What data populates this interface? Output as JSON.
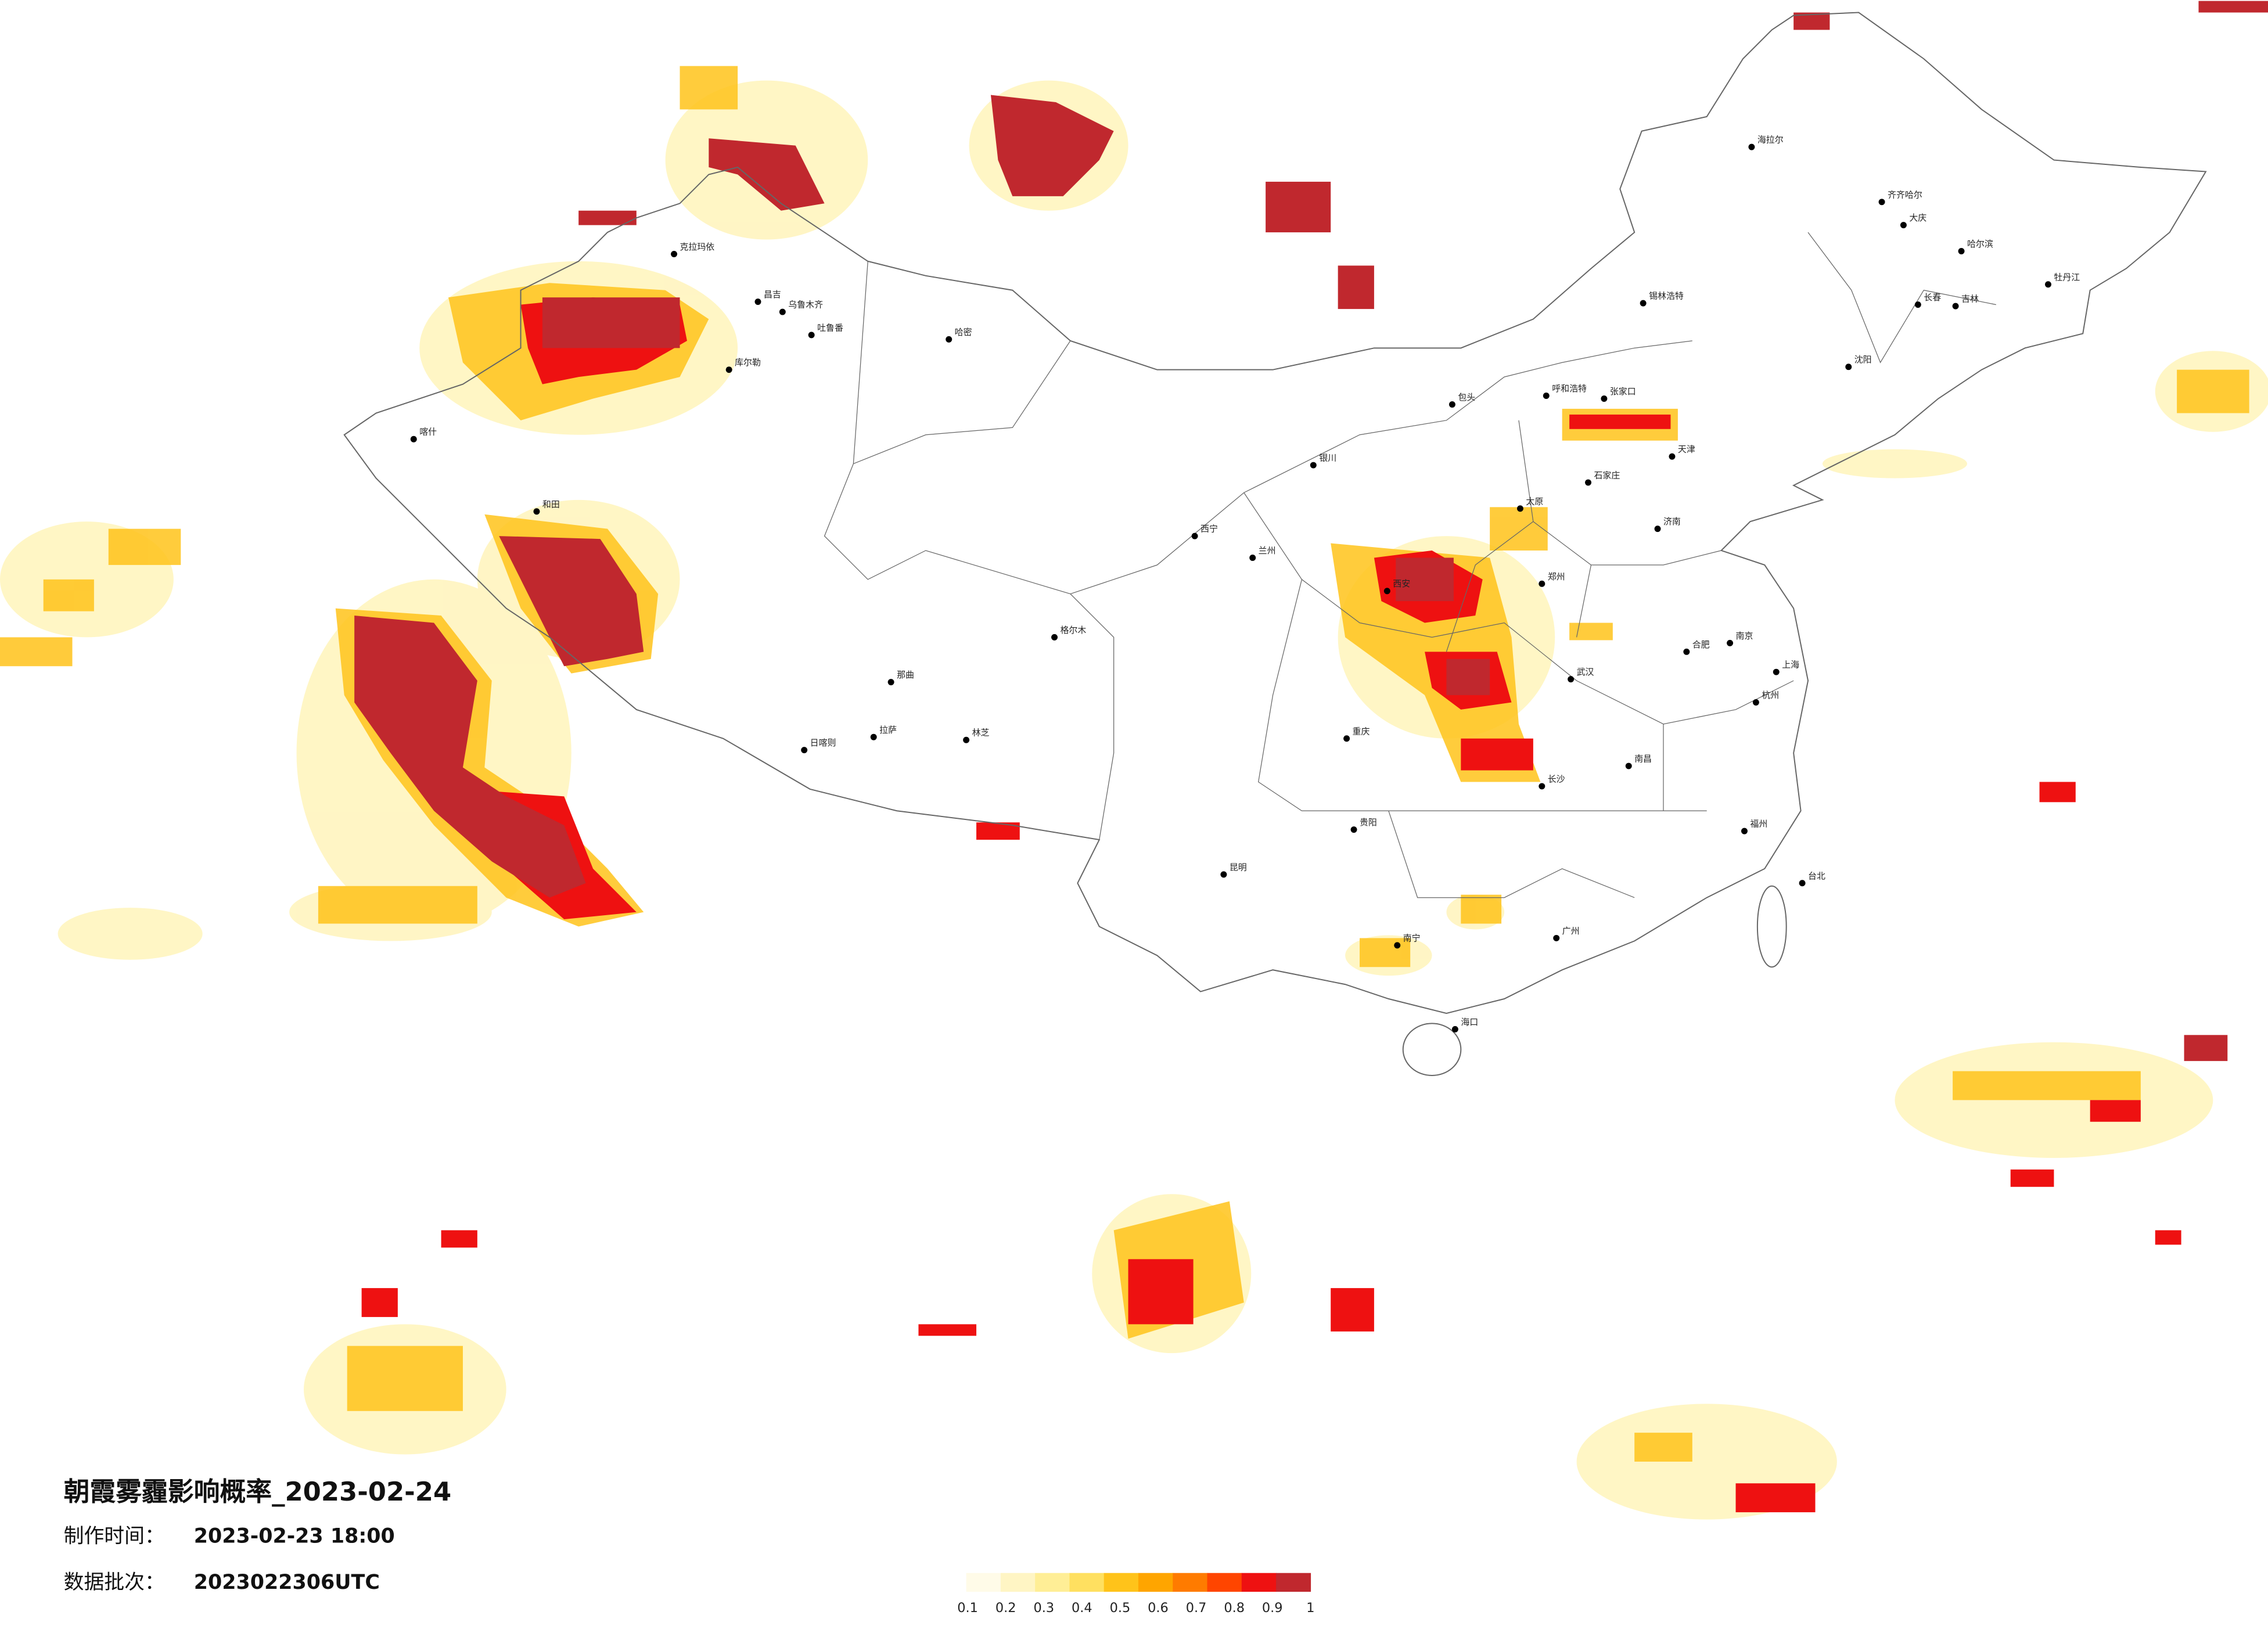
{
  "title": "朝霞雾霾影响概率_2023-02-24",
  "production_time": {
    "label": "制作时间：",
    "value": "2023-02-23 18:00"
  },
  "data_batch": {
    "label": "数据批次：",
    "value": "2023022306UTC"
  },
  "legend": {
    "ticks": [
      0.1,
      0.2,
      0.3,
      0.4,
      0.5,
      0.6,
      0.7,
      0.8,
      0.9,
      1
    ],
    "colors": [
      "#fffbe8",
      "#fff5c4",
      "#ffee96",
      "#ffe060",
      "#ffc31a",
      "#ffa500",
      "#ff7b00",
      "#ff4500",
      "#ee1111",
      "#c0282e"
    ]
  },
  "cities": [
    "克拉玛依",
    "昌吉",
    "乌鲁木齐",
    "吐鲁番",
    "哈密",
    "库尔勒",
    "喀什",
    "和田",
    "日喀则",
    "拉萨",
    "林芝",
    "那曲",
    "格尔木",
    "西宁",
    "兰州",
    "银川",
    "包头",
    "呼和浩特",
    "锡林浩特",
    "张家口",
    "天津",
    "石家庄",
    "太原",
    "济南",
    "郑州",
    "西安",
    "武汉",
    "长沙",
    "重庆",
    "贵阳",
    "昆明",
    "南宁",
    "广州",
    "福州",
    "台北",
    "上海",
    "南京",
    "杭州",
    "南昌",
    "合肥",
    "哈尔滨",
    "长春",
    "吉林",
    "沈阳",
    "齐齐哈尔",
    "大庆",
    "海拉尔",
    "牡丹江",
    "海口"
  ]
}
